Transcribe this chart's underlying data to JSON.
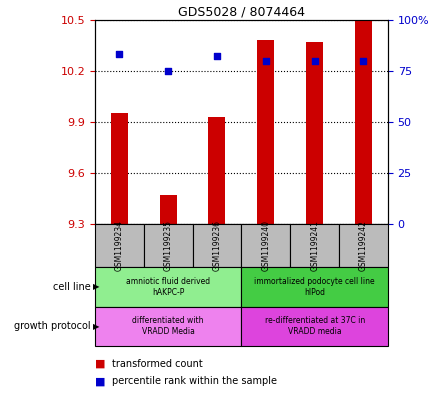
{
  "title": "GDS5028 / 8074464",
  "samples": [
    "GSM1199234",
    "GSM1199235",
    "GSM1199236",
    "GSM1199240",
    "GSM1199241",
    "GSM1199242"
  ],
  "bar_values": [
    9.95,
    9.47,
    9.93,
    10.38,
    10.37,
    10.5
  ],
  "percentile_values": [
    83,
    75,
    82,
    80,
    80,
    80
  ],
  "ylim_left": [
    9.3,
    10.5
  ],
  "ylim_right": [
    0,
    100
  ],
  "yticks_left": [
    9.3,
    9.6,
    9.9,
    10.2,
    10.5
  ],
  "yticks_right": [
    0,
    25,
    50,
    75,
    100
  ],
  "bar_color": "#cc0000",
  "dot_color": "#0000cc",
  "left_tick_color": "#cc0000",
  "right_tick_color": "#0000cc",
  "grid_color": "#000000",
  "bg_color": "#ffffff",
  "cell_line_left_text": "amniotic fluid derived\nhAKPC-P",
  "cell_line_right_text": "immortalized podocyte cell line\nhIPod",
  "growth_left_text": "differentiated with\nVRADD Media",
  "growth_right_text": "re-differentiated at 37C in\nVRADD media",
  "cell_line_left_color": "#90ee90",
  "cell_line_right_color": "#44cc44",
  "growth_left_color": "#ee82ee",
  "growth_right_color": "#dd44dd",
  "sample_bg_color": "#bbbbbb",
  "bar_width": 0.35,
  "dot_size": 25,
  "base_value": 9.3,
  "legend_red_label": "transformed count",
  "legend_blue_label": "percentile rank within the sample"
}
